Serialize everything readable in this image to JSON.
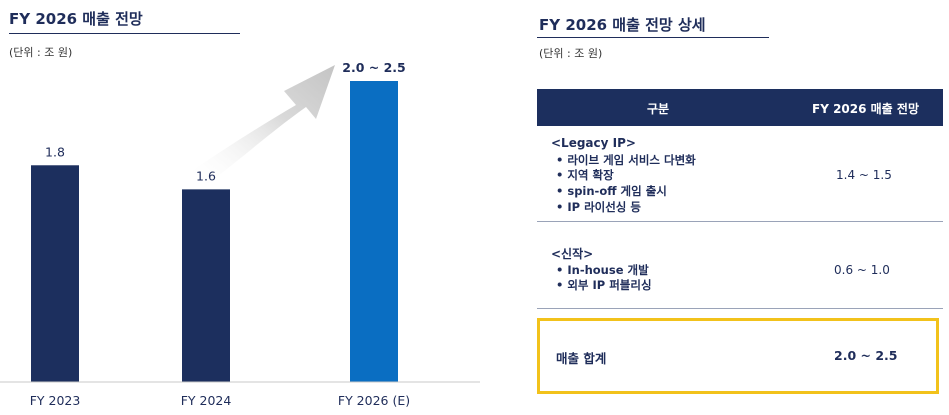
{
  "left_panel": {
    "title": "FY 2026 매출 전망",
    "unit": "(단위 : 조 원)"
  },
  "right_panel": {
    "title": "FY 2026 매출 전망 상세",
    "unit": "(단위 : 조 원)",
    "table": {
      "header_col1": "구분",
      "header_col2": "FY 2026 매출 전망",
      "rows": [
        {
          "group": "<Legacy IP>",
          "bullets": [
            "• 라이브 게임 서비스 다변화",
            "• 지역 확장",
            "• spin-off 게임 출시",
            "• IP 라이선싱 등"
          ],
          "value": "1.4 ~ 1.5"
        },
        {
          "group": "<신작>",
          "bullets": [
            "• In-house 개발",
            "• 외부 IP 퍼블리싱"
          ],
          "value": "0.6 ~ 1.0"
        }
      ],
      "total_label": "매출 합계",
      "total_value": "2.0 ~ 2.5"
    },
    "highlight_color": "#f2c21b"
  },
  "chart_data": {
    "type": "bar",
    "categories": [
      "FY 2023",
      "FY 2024",
      "FY 2026 (E)"
    ],
    "values": [
      1.8,
      1.6,
      2.5
    ],
    "value_labels": [
      "1.8",
      "1.6",
      "2.0 ~ 2.5"
    ],
    "title": "FY 2026 매출 전망",
    "unit": "(단위 : 조 원)",
    "ylim": [
      0,
      2.5
    ],
    "grid": false,
    "colors": [
      "#1c2f5e",
      "#1c2f5e",
      "#0a6ec2"
    ],
    "annotation": "upward-arrow"
  }
}
